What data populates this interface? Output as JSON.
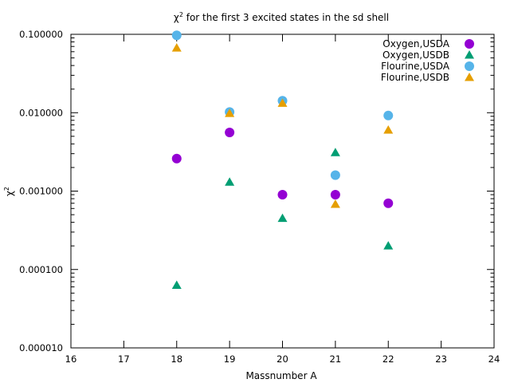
{
  "chart_data": {
    "type": "scatter",
    "title_main": "χ",
    "title_sup": "2",
    "title_rest": " for the first 3 excited states in the sd shell",
    "xlabel": "Massnumber A",
    "ylabel_main": "χ",
    "ylabel_sup": "2",
    "xlim": [
      16,
      24
    ],
    "ylim": [
      1e-05,
      0.1
    ],
    "yscale": "log",
    "x_ticks": [
      "16",
      "17",
      "18",
      "19",
      "20",
      "21",
      "22",
      "23",
      "24"
    ],
    "y_ticks": [
      "0.100000",
      "0.010000",
      "0.001000",
      "0.000100",
      "0.000010"
    ],
    "legend_position": "top-right",
    "series": [
      {
        "name": "Oxygen,USDA",
        "marker": "circle",
        "color": "#9400d3",
        "points": [
          [
            18,
            0.0026
          ],
          [
            19,
            0.0056
          ],
          [
            20,
            0.0009
          ],
          [
            21,
            0.0009
          ],
          [
            22,
            0.0007
          ]
        ]
      },
      {
        "name": "Oxygen,USDB",
        "marker": "triangle",
        "color": "#009e73",
        "points": [
          [
            18,
            6.3e-05
          ],
          [
            19,
            0.0013
          ],
          [
            20,
            0.00045
          ],
          [
            21,
            0.0031
          ],
          [
            22,
            0.0002
          ]
        ]
      },
      {
        "name": "Flourine,USDA",
        "marker": "circle",
        "color": "#56b4e9",
        "points": [
          [
            18,
            0.097
          ],
          [
            19,
            0.0102
          ],
          [
            20,
            0.0142
          ],
          [
            21,
            0.0016
          ],
          [
            22,
            0.0092
          ]
        ]
      },
      {
        "name": "Flourine,USDB",
        "marker": "triangle",
        "color": "#e69f00",
        "points": [
          [
            18,
            0.067
          ],
          [
            19,
            0.0098
          ],
          [
            20,
            0.0132
          ],
          [
            21,
            0.00068
          ],
          [
            22,
            0.006
          ]
        ]
      }
    ]
  }
}
